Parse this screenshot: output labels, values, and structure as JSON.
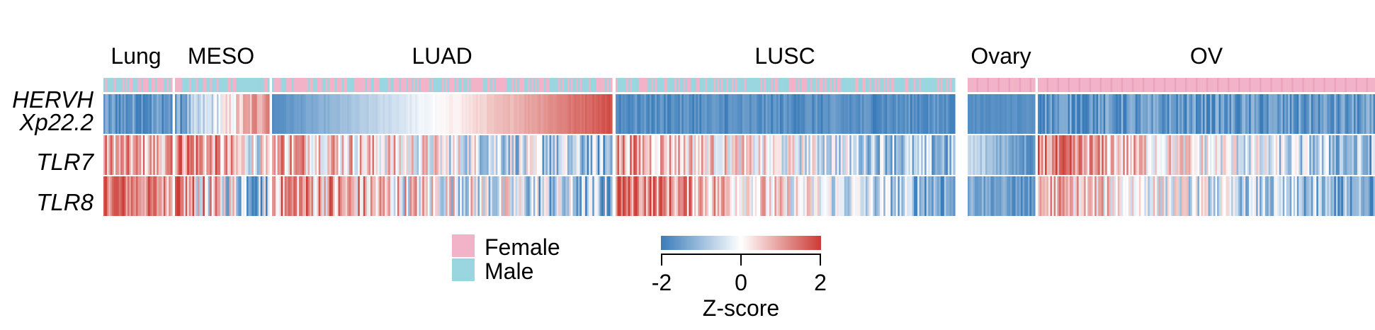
{
  "chart_data": {
    "type": "heatmap",
    "rows": [
      "HERVH Xp22.2",
      "TLR7",
      "TLR8"
    ],
    "row_labels": [
      [
        "HERVH",
        "Xp22.2"
      ],
      [
        "TLR7"
      ],
      [
        "TLR8"
      ]
    ],
    "groups": [
      {
        "label": "Lung",
        "n": 40,
        "sex": "mixed",
        "female_fraction": 0.5,
        "rows": {
          "HERVH Xp22.2": {
            "start": -1.6,
            "end": -1.6,
            "noise": 0.3
          },
          "TLR7": {
            "start": 0.9,
            "end": 0.7,
            "noise": 0.5
          },
          "TLR8": {
            "start": 1.6,
            "end": 1.0,
            "noise": 0.4
          }
        }
      },
      {
        "label": "MESO",
        "n": 54,
        "sex": "mixed",
        "female_fraction": 0.3,
        "rows": {
          "HERVH Xp22.2": {
            "start": -1.6,
            "end": 1.4,
            "noise": 0.3
          },
          "TLR7": {
            "start": 1.6,
            "end": -0.3,
            "noise": 0.6
          },
          "TLR8": {
            "start": 1.0,
            "end": -1.0,
            "noise": 0.8
          }
        }
      },
      {
        "label": "LUAD",
        "n": 190,
        "sex": "mixed",
        "female_fraction": 0.55,
        "rows": {
          "HERVH Xp22.2": {
            "start": -1.75,
            "end": 1.8,
            "noise": 0.05
          },
          "TLR7": {
            "start": 1.0,
            "end": -1.1,
            "noise": 0.6
          },
          "TLR8": {
            "start": 1.2,
            "end": -1.1,
            "noise": 0.7
          }
        }
      },
      {
        "label": "LUSC",
        "n": 190,
        "sex": "mixed",
        "female_fraction": 0.3,
        "rows": {
          "HERVH Xp22.2": {
            "start": -1.7,
            "end": -1.7,
            "noise": 0.15
          },
          "TLR7": {
            "start": 1.0,
            "end": -1.2,
            "noise": 0.5
          },
          "TLR8": {
            "start": 1.6,
            "end": -1.3,
            "noise": 0.5
          }
        }
      },
      {
        "label": "Ovary",
        "n": 38,
        "sex": "female",
        "female_fraction": 1.0,
        "rows": {
          "HERVH Xp22.2": {
            "start": -1.7,
            "end": -1.7,
            "noise": 0.05
          },
          "TLR7": {
            "start": -0.6,
            "end": -1.6,
            "noise": 0.2
          },
          "TLR8": {
            "start": -1.2,
            "end": -1.7,
            "noise": 0.2
          }
        }
      },
      {
        "label": "OV",
        "n": 190,
        "sex": "female",
        "female_fraction": 1.0,
        "rows": {
          "HERVH Xp22.2": {
            "start": -1.6,
            "end": -1.6,
            "noise": 0.3
          },
          "TLR7": {
            "start": 1.2,
            "end": -1.2,
            "noise": 0.5
          },
          "TLR8": {
            "start": 0.8,
            "end": -1.5,
            "noise": 0.5
          }
        }
      }
    ],
    "colorscale": {
      "min": -2,
      "mid": 0,
      "max": 2,
      "low_color": "#3a7cba",
      "mid_color": "#ffffff",
      "high_color": "#cc3b35"
    },
    "legend": {
      "items": [
        {
          "label": "Female",
          "color": "#f2b3c9"
        },
        {
          "label": "Male",
          "color": "#99d6df"
        }
      ]
    },
    "colorbar": {
      "ticks": [
        "-2",
        "0",
        "2"
      ],
      "title": "Z-score"
    }
  }
}
